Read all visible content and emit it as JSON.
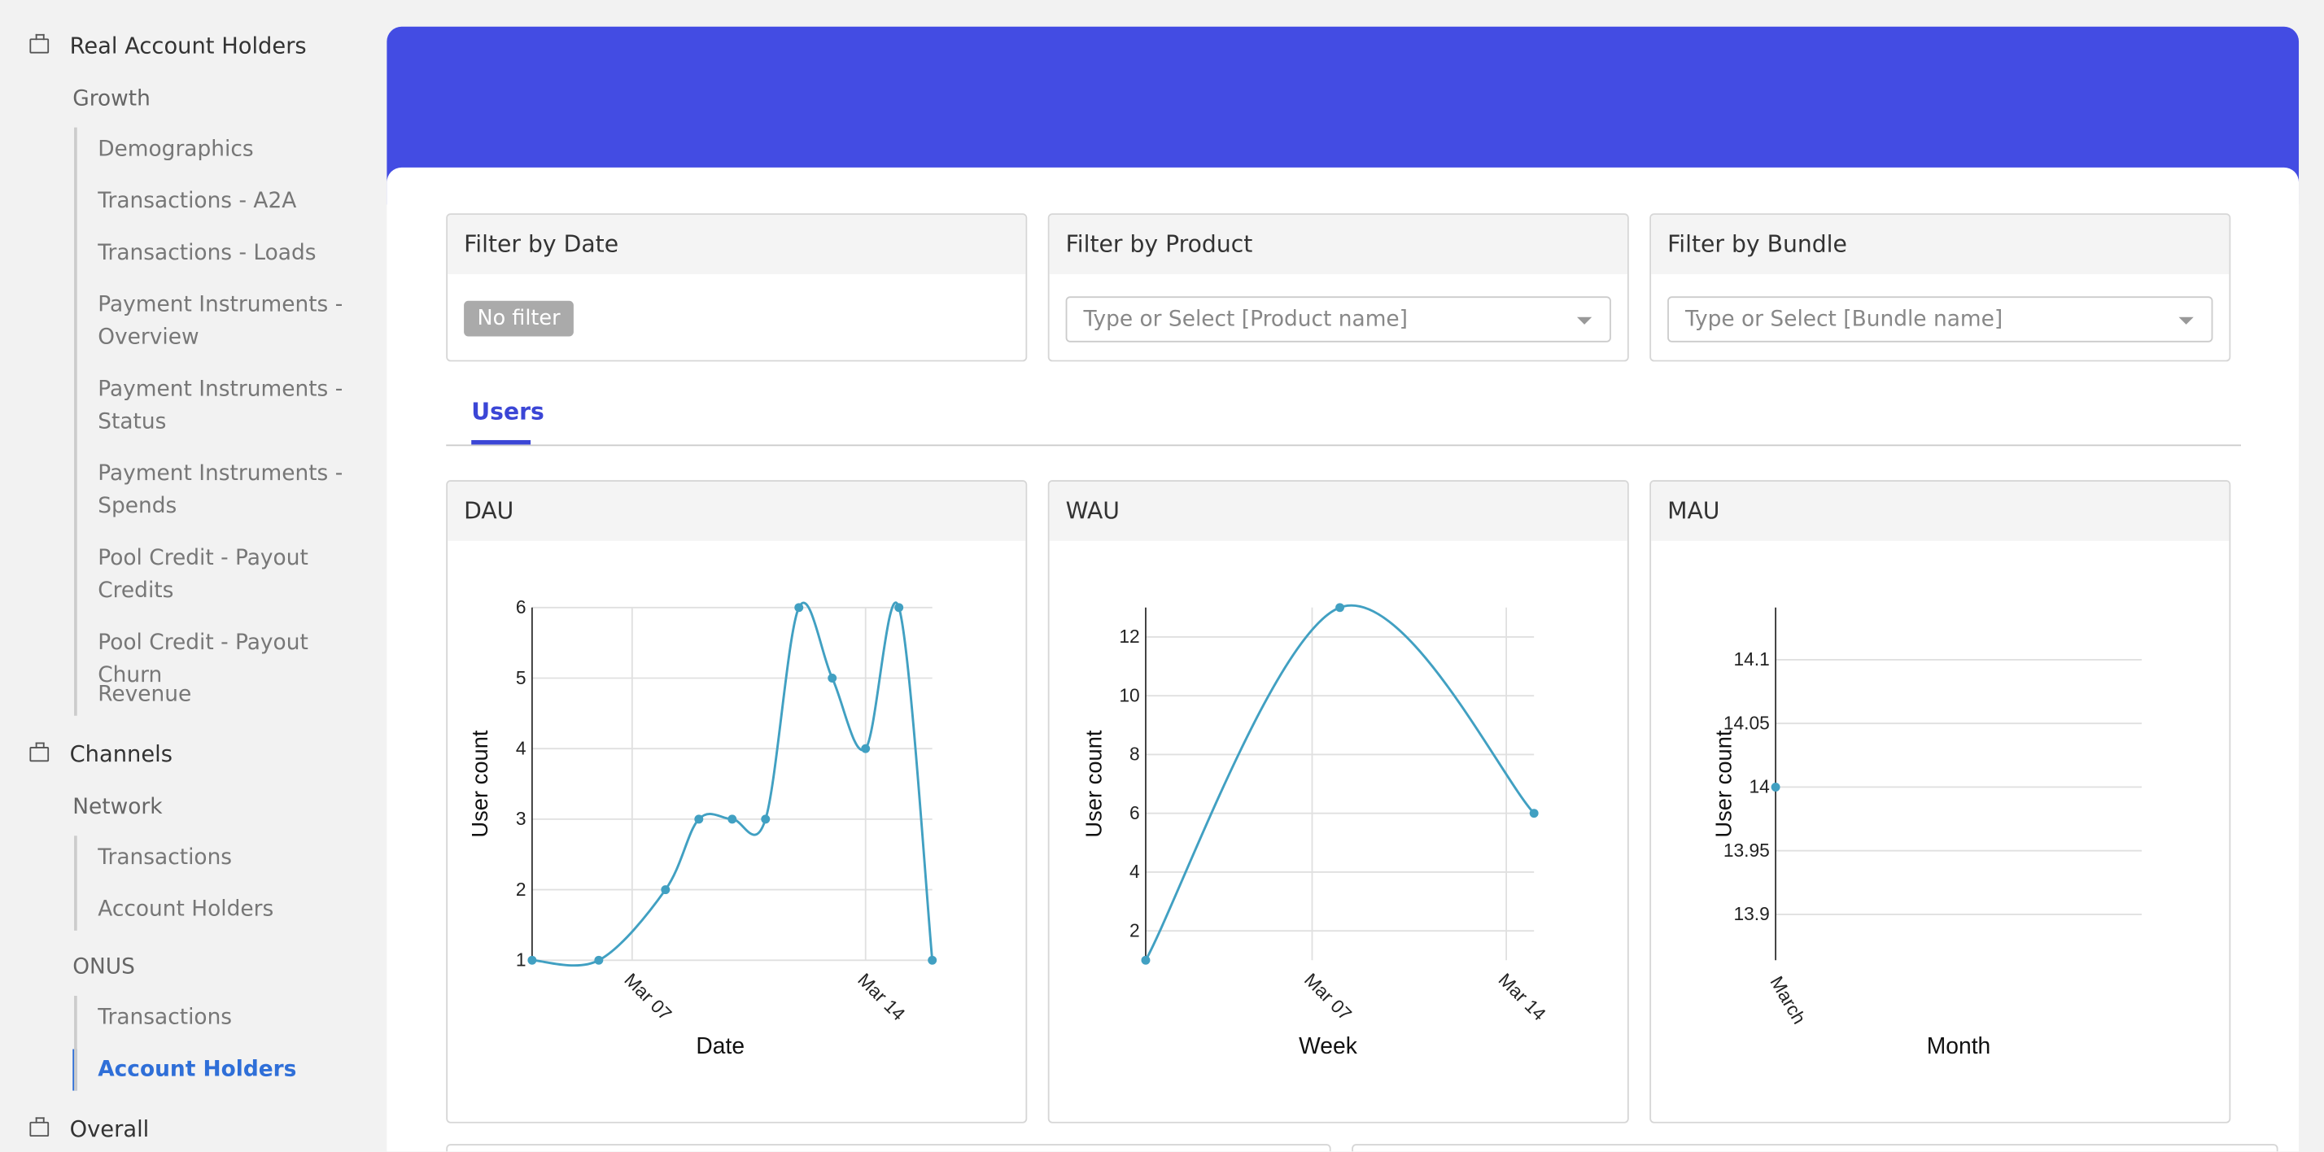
{
  "sidebar": [
    {
      "section": "Real Account Holders",
      "groups": [
        {
          "label": "Growth",
          "items": [
            "Demographics",
            "Transactions - A2A",
            "Transactions - Loads",
            "Payment Instruments - Overview",
            "Payment Instruments - Status",
            "Payment Instruments - Spends",
            "Pool Credit - Payout Credits",
            "Pool Credit - Payout Churn",
            "Revenue"
          ]
        }
      ]
    },
    {
      "section": "Channels",
      "groups": [
        {
          "label": "Network",
          "items": [
            "Transactions",
            "Account Holders"
          ]
        },
        {
          "label": "ONUS",
          "items": [
            "Transactions",
            "Account Holders"
          ]
        }
      ]
    },
    {
      "section": "Overall",
      "groups": []
    }
  ],
  "filters": [
    {
      "title": "Filter by Date",
      "button": "No filter"
    },
    {
      "title": "Filter by Product",
      "placeholder": "Type or Select [Product name]"
    },
    {
      "title": "Filter by Bundle",
      "placeholder": "Type or Select [Bundle name]"
    }
  ],
  "tabs": [
    "Users"
  ],
  "chart_data": [
    {
      "type": "line",
      "title": "DAU",
      "x_label": "Date",
      "y_label": "User count",
      "color": "#41a0c2",
      "x": [
        4,
        6,
        8,
        9,
        10,
        11,
        12,
        13,
        14,
        15,
        16
      ],
      "values": [
        1,
        1,
        2,
        3,
        3,
        3,
        6,
        5,
        4,
        6,
        1
      ],
      "xlim": [
        4,
        16
      ],
      "xticks": [
        {
          "value": 7,
          "label": "Mar 07"
        },
        {
          "value": 14,
          "label": "Mar 14"
        }
      ],
      "ylim": [
        1,
        6
      ],
      "yticks": [
        1,
        2,
        3,
        4,
        5,
        6
      ],
      "grid": true
    },
    {
      "type": "line",
      "title": "WAU",
      "x_label": "Week",
      "y_label": "User count",
      "color": "#41a0c2",
      "x": [
        1,
        8,
        15
      ],
      "values": [
        1,
        13,
        6
      ],
      "xlim": [
        1,
        15
      ],
      "xticks": [
        {
          "value": 7,
          "label": "Mar 07"
        },
        {
          "value": 14,
          "label": "Mar 14"
        }
      ],
      "ylim": [
        1,
        13
      ],
      "yticks": [
        2,
        4,
        6,
        8,
        10,
        12
      ],
      "grid": true
    },
    {
      "type": "line",
      "title": "MAU",
      "x_label": "Month",
      "y_label": "User count",
      "color": "#41a0c2",
      "categories": [
        "March"
      ],
      "values": [
        14
      ],
      "ylim": [
        13.864,
        14.141
      ],
      "yticks": [
        13.9,
        13.95,
        14,
        14.05,
        14.1
      ],
      "grid": true
    }
  ]
}
